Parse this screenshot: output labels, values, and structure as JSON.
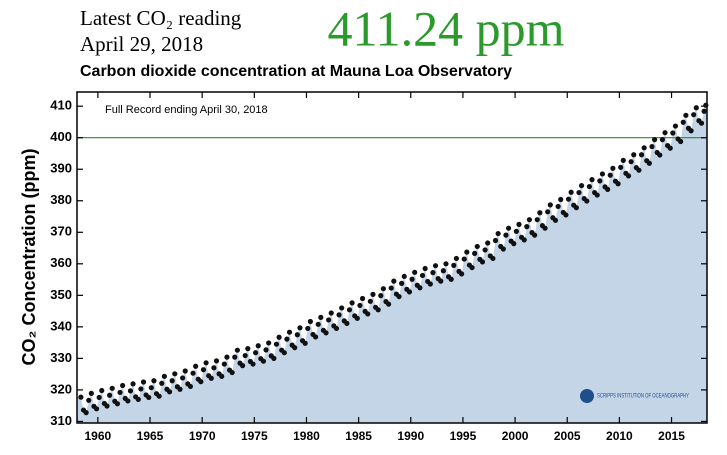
{
  "header": {
    "reading_label": "Latest CO₂ reading",
    "reading_date": "April 29, 2018",
    "reading_value": "411.24 ppm"
  },
  "chart_data": {
    "type": "scatter",
    "title": "Carbon dioxide concentration at Mauna Loa Observatory",
    "annotation": "Full Record ending April 30, 2018",
    "y_label": "CO₂ Concentration (ppm)",
    "logo": "SCRIPPS INSTITUTION OF OCEANOGRAPHY",
    "color": "#111111",
    "area_color": "#c5d5e8",
    "reference_line": 400,
    "reference_color": "#2e8b2e",
    "xlim": [
      1958,
      2018.4
    ],
    "ylim": [
      309.5,
      414.5
    ],
    "xticks": [
      1960,
      1965,
      1970,
      1975,
      1980,
      1985,
      1990,
      1995,
      2000,
      2005,
      2010,
      2015
    ],
    "yticks": [
      310,
      320,
      330,
      340,
      350,
      360,
      370,
      380,
      390,
      400,
      410
    ],
    "x": [
      1958.375,
      1958.625,
      1958.875,
      1959.125,
      1959.375,
      1959.625,
      1959.875,
      1960.125,
      1960.375,
      1960.625,
      1960.875,
      1961.125,
      1961.375,
      1961.625,
      1961.875,
      1962.125,
      1962.375,
      1962.625,
      1962.875,
      1963.125,
      1963.375,
      1963.625,
      1963.875,
      1964.125,
      1964.375,
      1964.625,
      1964.875,
      1965.125,
      1965.375,
      1965.625,
      1965.875,
      1966.125,
      1966.375,
      1966.625,
      1966.875,
      1967.125,
      1967.375,
      1967.625,
      1967.875,
      1968.125,
      1968.375,
      1968.625,
      1968.875,
      1969.125,
      1969.375,
      1969.625,
      1969.875,
      1970.125,
      1970.375,
      1970.625,
      1970.875,
      1971.125,
      1971.375,
      1971.625,
      1971.875,
      1972.125,
      1972.375,
      1972.625,
      1972.875,
      1973.125,
      1973.375,
      1973.625,
      1973.875,
      1974.125,
      1974.375,
      1974.625,
      1974.875,
      1975.125,
      1975.375,
      1975.625,
      1975.875,
      1976.125,
      1976.375,
      1976.625,
      1976.875,
      1977.125,
      1977.375,
      1977.625,
      1977.875,
      1978.125,
      1978.375,
      1978.625,
      1978.875,
      1979.125,
      1979.375,
      1979.625,
      1979.875,
      1980.125,
      1980.375,
      1980.625,
      1980.875,
      1981.125,
      1981.375,
      1981.625,
      1981.875,
      1982.125,
      1982.375,
      1982.625,
      1982.875,
      1983.125,
      1983.375,
      1983.625,
      1983.875,
      1984.125,
      1984.375,
      1984.625,
      1984.875,
      1985.125,
      1985.375,
      1985.625,
      1985.875,
      1986.125,
      1986.375,
      1986.625,
      1986.875,
      1987.125,
      1987.375,
      1987.625,
      1987.875,
      1988.125,
      1988.375,
      1988.625,
      1988.875,
      1989.125,
      1989.375,
      1989.625,
      1989.875,
      1990.125,
      1990.375,
      1990.625,
      1990.875,
      1991.125,
      1991.375,
      1991.625,
      1991.875,
      1992.125,
      1992.375,
      1992.625,
      1992.875,
      1993.125,
      1993.375,
      1993.625,
      1993.875,
      1994.125,
      1994.375,
      1994.625,
      1994.875,
      1995.125,
      1995.375,
      1995.625,
      1995.875,
      1996.125,
      1996.375,
      1996.625,
      1996.875,
      1997.125,
      1997.375,
      1997.625,
      1997.875,
      1998.125,
      1998.375,
      1998.625,
      1998.875,
      1999.125,
      1999.375,
      1999.625,
      1999.875,
      2000.125,
      2000.375,
      2000.625,
      2000.875,
      2001.125,
      2001.375,
      2001.625,
      2001.875,
      2002.125,
      2002.375,
      2002.625,
      2002.875,
      2003.125,
      2003.375,
      2003.625,
      2003.875,
      2004.125,
      2004.375,
      2004.625,
      2004.875,
      2005.125,
      2005.375,
      2005.625,
      2005.875,
      2006.125,
      2006.375,
      2006.625,
      2006.875,
      2007.125,
      2007.375,
      2007.625,
      2007.875,
      2008.125,
      2008.375,
      2008.625,
      2008.875,
      2009.125,
      2009.375,
      2009.625,
      2009.875,
      2010.125,
      2010.375,
      2010.625,
      2010.875,
      2011.125,
      2011.375,
      2011.625,
      2011.875,
      2012.125,
      2012.375,
      2012.625,
      2012.875,
      2013.125,
      2013.375,
      2013.625,
      2013.875,
      2014.125,
      2014.375,
      2014.625,
      2014.875,
      2015.125,
      2015.375,
      2015.625,
      2015.875,
      2016.125,
      2016.375,
      2016.625,
      2016.875,
      2017.125,
      2017.375,
      2017.625,
      2017.875,
      2018.125,
      2018.29
    ],
    "values": [
      317.7,
      313.6,
      312.8,
      316.7,
      318.9,
      314.8,
      314.0,
      317.6,
      319.8,
      315.7,
      314.9,
      318.3,
      320.5,
      316.4,
      315.6,
      319.2,
      321.4,
      317.3,
      316.5,
      319.7,
      321.9,
      317.8,
      317.0,
      320.3,
      322.5,
      318.4,
      317.6,
      320.7,
      322.9,
      318.8,
      318.0,
      322.1,
      324.3,
      320.2,
      319.4,
      322.9,
      325.1,
      321.0,
      320.2,
      323.8,
      326.0,
      321.9,
      321.1,
      325.3,
      327.5,
      323.4,
      322.6,
      326.4,
      328.6,
      324.5,
      323.7,
      327.0,
      329.2,
      325.1,
      324.3,
      328.2,
      330.4,
      326.3,
      325.5,
      330.4,
      332.6,
      328.5,
      327.7,
      330.9,
      333.1,
      329.0,
      328.2,
      331.8,
      334.0,
      329.9,
      329.1,
      332.7,
      334.9,
      330.8,
      330.0,
      334.5,
      336.7,
      332.6,
      331.8,
      336.1,
      338.3,
      334.2,
      333.4,
      337.5,
      339.7,
      335.6,
      334.8,
      339.5,
      341.7,
      337.6,
      336.8,
      340.8,
      343.0,
      338.9,
      338.1,
      342.2,
      344.4,
      340.3,
      339.5,
      343.8,
      346.0,
      341.9,
      341.1,
      345.4,
      347.6,
      343.5,
      342.7,
      346.8,
      349.0,
      344.9,
      344.1,
      348.1,
      350.3,
      346.2,
      345.4,
      349.9,
      352.1,
      348.0,
      347.2,
      352.3,
      354.5,
      350.4,
      349.6,
      353.8,
      356.0,
      351.9,
      351.1,
      355.1,
      357.3,
      353.2,
      352.4,
      356.3,
      358.5,
      354.4,
      353.6,
      357.2,
      359.4,
      355.3,
      354.5,
      357.8,
      360.0,
      355.9,
      355.1,
      359.5,
      361.7,
      357.6,
      356.8,
      361.5,
      363.7,
      359.6,
      358.8,
      363.3,
      365.5,
      361.4,
      360.6,
      364.4,
      366.6,
      362.5,
      361.7,
      367.4,
      369.6,
      365.5,
      364.7,
      369.1,
      371.3,
      367.2,
      366.4,
      370.3,
      372.5,
      368.4,
      367.6,
      371.8,
      374.0,
      369.9,
      369.1,
      374.0,
      376.2,
      372.1,
      371.3,
      376.5,
      378.7,
      374.6,
      373.8,
      378.2,
      380.4,
      376.3,
      375.5,
      380.5,
      382.7,
      378.6,
      377.8,
      382.6,
      384.8,
      380.7,
      379.9,
      384.5,
      386.7,
      382.6,
      381.8,
      386.3,
      388.5,
      384.4,
      383.6,
      388.1,
      390.3,
      386.2,
      385.4,
      390.6,
      392.8,
      388.7,
      387.9,
      392.4,
      394.6,
      390.5,
      389.7,
      394.6,
      396.8,
      392.7,
      391.9,
      397.2,
      399.4,
      395.3,
      394.5,
      399.4,
      401.6,
      397.5,
      396.7,
      401.5,
      403.7,
      399.6,
      398.8,
      404.9,
      407.1,
      403.0,
      402.2,
      407.3,
      409.5,
      405.4,
      404.6,
      408.4,
      410.3
    ]
  }
}
